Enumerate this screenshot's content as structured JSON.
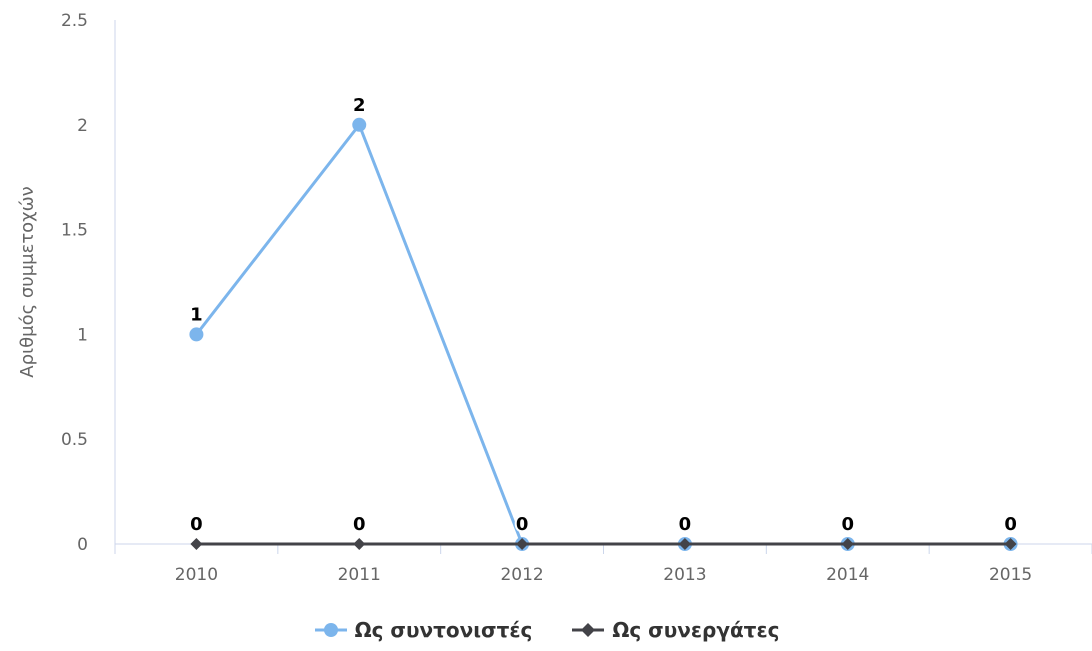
{
  "chart_data": {
    "type": "line",
    "categories": [
      "2010",
      "2011",
      "2012",
      "2013",
      "2014",
      "2015"
    ],
    "ylabel": "Αριθμός συμμετοχών",
    "xlabel": "",
    "title": "",
    "ylim": [
      0,
      2.5
    ],
    "yticks": [
      "0",
      "0.5",
      "1",
      "1.5",
      "2",
      "2.5"
    ],
    "grid": false,
    "legend_position": "bottom-center",
    "series": [
      {
        "name": "Ως συντονιστές",
        "values": [
          1,
          2,
          0,
          0,
          0,
          0
        ],
        "labels": [
          "1",
          "2",
          "0",
          "",
          "",
          ""
        ],
        "color": "#7cb5ec",
        "marker": "circle"
      },
      {
        "name": "Ως συνεργάτες",
        "values": [
          0,
          0,
          0,
          0,
          0,
          0
        ],
        "labels": [
          "0",
          "0",
          "",
          "0",
          "0",
          "0"
        ],
        "color": "#434348",
        "marker": "diamond"
      }
    ]
  }
}
